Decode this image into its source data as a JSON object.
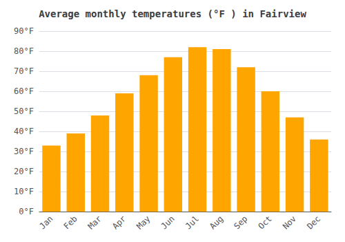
{
  "chart_data": {
    "type": "bar",
    "title": "Average monthly temperatures (°F ) in Fairview",
    "categories": [
      "Jan",
      "Feb",
      "Mar",
      "Apr",
      "May",
      "Jun",
      "Jul",
      "Aug",
      "Sep",
      "Oct",
      "Nov",
      "Dec"
    ],
    "values": [
      33,
      39,
      48,
      59,
      68,
      77,
      82,
      81,
      72,
      60,
      47,
      36
    ],
    "color": "#FFA500",
    "ylim": [
      0,
      90
    ],
    "yticks": [
      {
        "value": 0,
        "label": "0°F"
      },
      {
        "value": 10,
        "label": "10°F"
      },
      {
        "value": 20,
        "label": "20°F"
      },
      {
        "value": 30,
        "label": "30°F"
      },
      {
        "value": 40,
        "label": "40°F"
      },
      {
        "value": 50,
        "label": "50°F"
      },
      {
        "value": 60,
        "label": "60°F"
      },
      {
        "value": 70,
        "label": "70°F"
      },
      {
        "value": 80,
        "label": "80°F"
      },
      {
        "value": 90,
        "label": "90°F"
      }
    ],
    "grid": true
  }
}
